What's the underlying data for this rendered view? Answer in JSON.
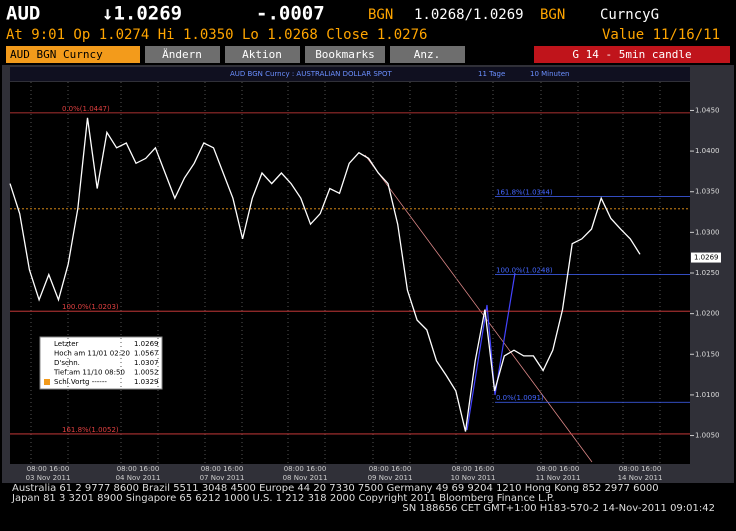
{
  "header": {
    "ticker": "AUD",
    "last": "↓1.0269",
    "change": "-.0007",
    "src1": "BGN",
    "bidask": "1.0268/1.0269",
    "src2": "BGN",
    "key": "CurncyG",
    "line2": "At  9:01 Op 1.0274 Hi 1.0350 Lo 1.0268 Close 1.0276",
    "value_date": "Value  11/16/11"
  },
  "toolbar": {
    "security": "AUD BGN Curncy",
    "buttons": [
      "Ändern",
      "Aktion",
      "Bookmarks",
      "Anz."
    ],
    "function": "G 14 - 5min candle"
  },
  "chart_data": {
    "type": "line",
    "title": "AUD BGN Curncy   :   AUSTRALIAN DOLLAR SPOT",
    "period": "11 Tage",
    "interval": "10 Minuten",
    "color": "#ffffff",
    "values": [
      1.036,
      1.0323,
      1.0254,
      1.0217,
      1.0248,
      1.0217,
      1.0261,
      1.0329,
      1.0441,
      1.0354,
      1.0423,
      1.0404,
      1.041,
      1.0385,
      1.0391,
      1.0404,
      1.0373,
      1.0342,
      1.0367,
      1.0385,
      1.041,
      1.0404,
      1.0373,
      1.0342,
      1.0292,
      1.0342,
      1.0373,
      1.036,
      1.0373,
      1.036,
      1.0342,
      1.031,
      1.0323,
      1.0354,
      1.0348,
      1.0385,
      1.0398,
      1.0391,
      1.0373,
      1.036,
      1.031,
      1.0229,
      1.0192,
      1.018,
      1.0142,
      1.0124,
      1.0105,
      1.0055,
      1.0142,
      1.0205,
      1.0105,
      1.0148,
      1.0155,
      1.0148,
      1.0148,
      1.013,
      1.0155,
      1.0205,
      1.0286,
      1.0292,
      1.0304,
      1.0342,
      1.0317,
      1.0304,
      1.0292,
      1.0273
    ],
    "ylim": [
      1.0015,
      1.0485
    ],
    "yticks": [
      {
        "value": 1.005,
        "label": "1.0050"
      },
      {
        "value": 1.01,
        "label": "1.0100"
      },
      {
        "value": 1.015,
        "label": "1.0150"
      },
      {
        "value": 1.02,
        "label": "1.0200"
      },
      {
        "value": 1.025,
        "label": "1.0250"
      },
      {
        "value": 1.03,
        "label": "1.0300"
      },
      {
        "value": 1.035,
        "label": "1.0350"
      },
      {
        "value": 1.04,
        "label": "1.0400"
      },
      {
        "value": 1.045,
        "label": "1.0450"
      }
    ],
    "last_price": {
      "value": 1.0269,
      "label": "1.0269"
    },
    "prev_close": 1.0329,
    "fib_red": [
      {
        "value": 1.0447,
        "label": "0.0%(1.0447)"
      },
      {
        "value": 1.0203,
        "label": "100.0%(1.0203)"
      },
      {
        "value": 1.0052,
        "label": "161.8%(1.0052)"
      }
    ],
    "fib_blue": [
      {
        "value": 1.0344,
        "label": "161.8%(1.0344)"
      },
      {
        "value": 1.0248,
        "label": "100.0%(1.0248)"
      },
      {
        "value": 1.0091,
        "label": "0.0%(1.0091)"
      }
    ],
    "x_axis": [
      {
        "hours": "08:00  16:00",
        "date": "03 Nov 2011"
      },
      {
        "hours": "08:00  16:00",
        "date": "04 Nov 2011"
      },
      {
        "hours": "08:00  16:00",
        "date": "07 Nov 2011"
      },
      {
        "hours": "08:00  16:00",
        "date": "08 Nov 2011"
      },
      {
        "hours": "08:00  16:00",
        "date": "09 Nov 2011"
      },
      {
        "hours": "08:00  16:00",
        "date": "10 Nov 2011"
      },
      {
        "hours": "08:00  16:00",
        "date": "11 Nov 2011"
      },
      {
        "hours": "08:00  16:00",
        "date": "14 Nov 2011"
      }
    ],
    "legend": [
      {
        "name": "Letzter",
        "value": "1.0269"
      },
      {
        "name": "Hoch am 11/01 02:20",
        "value": "1.0567"
      },
      {
        "name": "D'schn.",
        "value": "1.0307"
      },
      {
        "name": "Tief am 11/10 08:50",
        "value": "1.0052"
      },
      {
        "name": "Schl.Vortg  ------",
        "value": "1.0329"
      }
    ]
  },
  "footer": [
    "Australia 61 2 9777 8600 Brazil 5511 3048 4500 Europe 44 20 7330 7500 Germany 49 69 9204 1210 Hong Kong 852 2977 6000",
    "Japan 81 3 3201 8900         Singapore 65 6212 1000          U.S. 1 212 318 2000          Copyright 2011 Bloomberg Finance L.P.",
    "SN 188656 CET   GMT+1:00 H183-570-2 14-Nov-2011 09:01:42"
  ]
}
